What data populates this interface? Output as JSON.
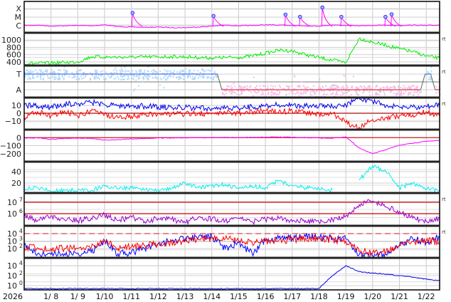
{
  "chart_data": {
    "type": "line",
    "x_axis": {
      "year_label": "2026",
      "tick_labels": [
        "1/ 8",
        "1/ 9",
        "1/10",
        "1/11",
        "1/12",
        "1/13",
        "1/14",
        "1/15",
        "1/16",
        "1/17",
        "1/18",
        "1/19",
        "1/20",
        "1/21",
        "1/22"
      ],
      "range": [
        "2026-01-07T00:00",
        "2026-01-22T12:00"
      ],
      "grid": true
    },
    "x": [
      "2026-01-07T00:00",
      "2026-01-07T12:00",
      "2026-01-08T00:00",
      "2026-01-08T12:00",
      "2026-01-09T00:00",
      "2026-01-09T12:00",
      "2026-01-10T00:00",
      "2026-01-10T12:00",
      "2026-01-11T00:00",
      "2026-01-11T12:00",
      "2026-01-12T00:00",
      "2026-01-12T12:00",
      "2026-01-13T00:00",
      "2026-01-13T12:00",
      "2026-01-14T00:00",
      "2026-01-14T12:00",
      "2026-01-15T00:00",
      "2026-01-15T12:00",
      "2026-01-16T00:00",
      "2026-01-16T12:00",
      "2026-01-17T00:00",
      "2026-01-17T12:00",
      "2026-01-18T00:00",
      "2026-01-18T12:00",
      "2026-01-19T00:00",
      "2026-01-19T12:00",
      "2026-01-20T00:00",
      "2026-01-20T12:00",
      "2026-01-21T00:00",
      "2026-01-21T12:00",
      "2026-01-22T00:00",
      "2026-01-22T12:00"
    ],
    "panels": [
      {
        "key": "xray",
        "scale": "log",
        "ylim": [
          1.5e-07,
          0.0007
        ],
        "grid": true,
        "right_label": "",
        "ticks": [
          {
            "value": 1e-06,
            "label": "C"
          },
          {
            "value": 1e-05,
            "label": "M"
          },
          {
            "value": 0.0001,
            "label": "X"
          }
        ],
        "series": [
          {
            "color": "#ff00ff",
            "values": [
              1.1e-06,
              1.2e-06,
              9e-07,
              1e-06,
              1.1e-06,
              1e-06,
              1.3e-06,
              8e-07,
              7e-07,
              6.5e-07,
              7e-07,
              6e-07,
              6e-07,
              7e-07,
              9e-07,
              1.2e-06,
              1e-06,
              1.1e-06,
              1.3e-06,
              1.2e-06,
              1.1e-06,
              1e-06,
              9e-07,
              1.3e-06,
              1.1e-06,
              1e-06,
              1.1e-06,
              1.2e-06,
              1.1e-06,
              1.2e-06,
              1.1e-06,
              1.2e-06
            ]
          }
        ],
        "flares": [
          {
            "time": "2026-01-11T01:00",
            "peak": 3.2e-05
          },
          {
            "time": "2026-01-14T01:30",
            "peak": 1.4e-05
          },
          {
            "time": "2026-01-16T18:00",
            "peak": 2e-05
          },
          {
            "time": "2026-01-17T07:00",
            "peak": 1.1e-05
          },
          {
            "time": "2026-01-18T03:00",
            "peak": 0.00014
          },
          {
            "time": "2026-01-18T20:00",
            "peak": 1.1e-05
          },
          {
            "time": "2026-01-20T11:30",
            "peak": 1.1e-05
          },
          {
            "time": "2026-01-20T17:00",
            "peak": 2.2e-05
          }
        ],
        "marker_color": "#3333ff"
      },
      {
        "key": "solar-wind-speed",
        "scale": "linear",
        "ylim": [
          300,
          1200
        ],
        "grid": true,
        "right_label": "rt",
        "ticks": [
          {
            "value": 400,
            "label": "400"
          },
          {
            "value": 600,
            "label": "600"
          },
          {
            "value": 800,
            "label": "800"
          },
          {
            "value": 1000,
            "label": "1000"
          }
        ],
        "series": [
          {
            "color": "#00ee00",
            "values": [
              360,
              360,
              370,
              385,
              400,
              540,
              535,
              530,
              530,
              535,
              540,
              545,
              540,
              520,
              510,
              520,
              525,
              560,
              640,
              720,
              700,
              600,
              520,
              450,
              380,
              1050,
              940,
              860,
              760,
              680,
              560,
              500
            ]
          }
        ]
      },
      {
        "key": "imf-sector",
        "scale": "category",
        "grid": true,
        "right_label": "rt",
        "ticks": [
          {
            "value": "T",
            "label": "T"
          },
          {
            "value": "A",
            "label": "A"
          }
        ],
        "segments": [
          {
            "start": "2026-01-07T00:00",
            "end": "2026-01-14T05:00",
            "sector": "T"
          },
          {
            "start": "2026-01-14T09:00",
            "end": "2026-01-21T19:00",
            "sector": "A"
          },
          {
            "start": "2026-01-21T23:00",
            "end": "2026-01-22T04:00",
            "sector": "T"
          },
          {
            "start": "2026-01-22T08:00",
            "end": "2026-01-22T12:00",
            "sector": "A"
          }
        ],
        "colors": {
          "T": "#5a6cf0",
          "A": "#e03a3a",
          "T_points": "#aadcff",
          "A_points": "#f8b8f0",
          "other_points": "#cccccc"
        }
      },
      {
        "key": "imf",
        "scale": "linear",
        "ylim": [
          -21,
          20
        ],
        "grid": true,
        "right_label": "rt",
        "ticks": [
          {
            "value": 10,
            "label": "10"
          },
          {
            "value": 0,
            "label": "0"
          },
          {
            "value": -10,
            "label": "−10"
          }
        ],
        "ref_lines": [
          {
            "value": 0,
            "color": "#aa0000",
            "dashed": false
          }
        ],
        "series": [
          {
            "color": "#0000ee",
            "values": [
              10,
              9,
              7,
              12,
              12,
              14,
              11,
              10,
              9,
              9,
              8,
              7,
              7,
              7,
              6,
              6,
              7,
              8,
              9,
              11,
              10,
              9,
              9,
              8,
              10,
              20,
              15,
              9,
              8,
              8,
              9,
              10
            ]
          },
          {
            "color": "#ff0000",
            "values": [
              -5,
              2,
              -3,
              3,
              -4,
              3,
              -2,
              -6,
              -4,
              -2,
              0,
              -1,
              -1,
              0,
              -1,
              1,
              0,
              2,
              3,
              2,
              3,
              1,
              -1,
              0,
              -12,
              -18,
              -8,
              -6,
              -3,
              -2,
              2,
              -4
            ]
          }
        ]
      },
      {
        "key": "dst",
        "scale": "linear",
        "ylim": [
          -300,
          100
        ],
        "grid": true,
        "right_label": "",
        "ticks": [
          {
            "value": 0,
            "label": "0"
          },
          {
            "value": -100,
            "label": "−100"
          },
          {
            "value": -200,
            "label": "−200"
          }
        ],
        "ref_lines": [
          {
            "value": 0,
            "color": "#cc2222",
            "dashed": false
          }
        ],
        "series": [
          {
            "color": "#ff00ff",
            "values": [
              -5,
              -3,
              -20,
              -10,
              -5,
              -10,
              -30,
              -25,
              -15,
              -10,
              -5,
              -5,
              -2,
              0,
              0,
              2,
              0,
              3,
              5,
              8,
              5,
              0,
              -5,
              -8,
              10,
              -130,
              -200,
              -150,
              -95,
              -70,
              -45,
              -35
            ]
          }
        ]
      },
      {
        "key": "cyan-index",
        "scale": "linear",
        "ylim": [
          2.5,
          57.5
        ],
        "grid": true,
        "right_label": "",
        "ticks": [
          {
            "value": 40,
            "label": "40"
          },
          {
            "value": 20,
            "label": "20"
          }
        ],
        "series": [
          {
            "color": "#00eeee",
            "values": [
              10,
              12,
              6,
              7,
              8,
              7,
              15,
              10,
              12,
              8,
              9,
              10,
              20,
              12,
              15,
              18,
              10,
              15,
              12,
              25,
              15,
              12,
              10,
              8,
              null,
              25,
              50,
              40,
              12,
              20,
              10,
              8
            ]
          }
        ]
      },
      {
        "key": "electron-flux",
        "scale": "log",
        "ylim": [
          87000.0,
          65000000.0
        ],
        "grid": true,
        "right_label": "rt",
        "ticks": [
          {
            "value": 10000000.0,
            "base": "10",
            "exp": "7"
          },
          {
            "value": 1000000.0,
            "base": "10",
            "exp": "6"
          }
        ],
        "ref_lines": [
          {
            "value": 10000000.0,
            "color": "#cc0000",
            "dashed": false
          },
          {
            "value": 1000000.0,
            "color": "#cc0000",
            "dashed": false
          }
        ],
        "series": [
          {
            "color": "#9900cc",
            "values": [
              630000.0,
              250000.0,
              630000.0,
              320000.0,
              250000.0,
              400000.0,
              790000.0,
              250000.0,
              500000.0,
              200000.0,
              400000.0,
              320000.0,
              160000.0,
              500000.0,
              320000.0,
              250000.0,
              400000.0,
              200000.0,
              320000.0,
              400000.0,
              200000.0,
              250000.0,
              160000.0,
              320000.0,
              630000.0,
              6300000.0,
              12600000.0,
              4000000.0,
              1600000.0,
              400000.0,
              200000.0,
              400000.0
            ]
          }
        ]
      },
      {
        "key": "proton-flux",
        "scale": "log",
        "ylim": [
          5.8,
          110000.0
        ],
        "grid": true,
        "right_label": "rt",
        "ticks": [
          {
            "value": 10000.0,
            "base": "10",
            "exp": "4"
          },
          {
            "value": 1000.0,
            "base": "10",
            "exp": "3"
          },
          {
            "value": 100.0,
            "base": "10",
            "exp": "2"
          }
        ],
        "ref_lines": [
          {
            "value": 10000.0,
            "color": "#ee3333",
            "dashed": true
          }
        ],
        "series": [
          {
            "color": "#0000ff",
            "values": [
              316,
              20,
              16,
              20,
              25,
              32,
              1260,
              20,
              32,
              100,
              500,
              1000,
              2000,
              3160,
              3980,
              100,
              630,
              25,
              1000,
              2500,
              2500,
              3980,
              3160,
              2500,
              2000,
              16,
              10,
              16,
              250,
              2000,
              630,
              3160
            ]
          },
          {
            "color": "#ff0000",
            "values": [
              160,
              126,
              100,
              100,
              100,
              126,
              1260,
              100,
              160,
              250,
              400,
              630,
              1000,
              1580,
              2500,
              2000,
              1000,
              630,
              1000,
              1260,
              1580,
              2500,
              2000,
              1580,
              1000,
              40,
              32,
              40,
              316,
              1000,
              1260,
              630
            ]
          }
        ]
      },
      {
        "key": "lower-flux",
        "scale": "log",
        "ylim": [
          0.14,
          370000.0
        ],
        "grid": true,
        "right_label": "",
        "ticks": [
          {
            "value": 10000.0,
            "base": "10",
            "exp": "4"
          },
          {
            "value": 100.0,
            "base": "10",
            "exp": "2"
          },
          {
            "value": 1,
            "base": "10",
            "exp": "0"
          }
        ],
        "series": [
          {
            "color": "#0000ee",
            "values": [
              0.25,
              0.25,
              0.26,
              0.25,
              0.27,
              0.25,
              0.26,
              0.25,
              0.25,
              0.26,
              0.25,
              0.27,
              0.25,
              0.26,
              0.25,
              0.25,
              0.26,
              0.25,
              0.27,
              0.25,
              0.26,
              0.25,
              0.28,
              100,
              10000,
              630,
              316,
              200,
              100,
              50,
              20,
              10
            ]
          }
        ]
      }
    ]
  }
}
